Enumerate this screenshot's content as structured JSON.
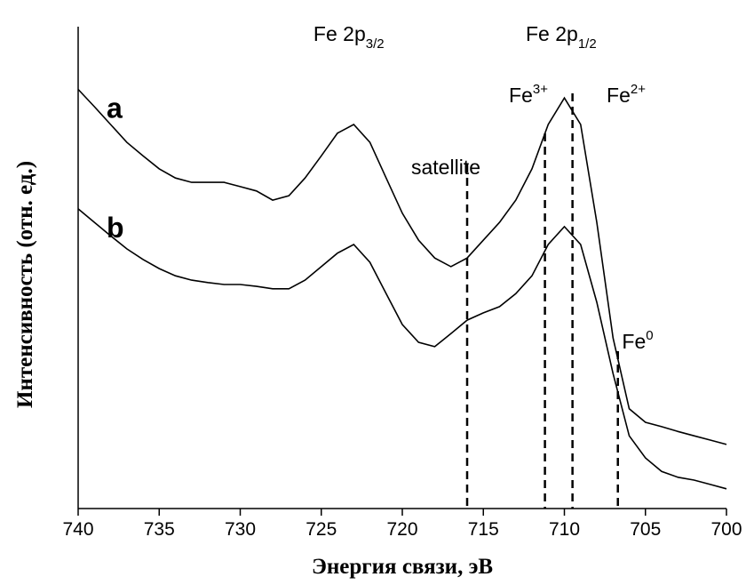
{
  "chart_data": {
    "type": "line",
    "x_label": "Энергия связи, эВ",
    "y_label": "Интенсивность (отн. ед.)",
    "x": [
      740,
      739,
      738,
      737,
      736,
      735,
      734,
      733,
      732,
      731,
      730,
      729,
      728,
      727,
      726,
      725,
      724,
      723,
      722,
      721,
      720,
      719,
      718,
      717,
      716,
      715,
      714,
      713,
      712,
      711,
      710,
      709,
      708,
      707,
      706,
      705,
      704,
      703,
      702,
      701,
      700
    ],
    "series": [
      {
        "name": "a",
        "color": "#000000",
        "values": [
          87,
          83.4,
          79.7,
          76,
          73.2,
          70.5,
          68.6,
          67.7,
          67.7,
          67.7,
          66.8,
          65.9,
          64,
          64.9,
          68.6,
          73.2,
          77.9,
          79.7,
          76,
          68.6,
          61.3,
          55.7,
          52,
          50.2,
          52,
          55.7,
          59.4,
          64,
          70.5,
          79.7,
          85.2,
          79.7,
          59.4,
          35.4,
          20.7,
          17.9,
          17,
          16,
          15.1,
          14.2,
          13.3
        ]
      },
      {
        "name": "b",
        "color": "#000000",
        "values": [
          62.2,
          59.4,
          56.6,
          53.9,
          51.7,
          49.8,
          48.3,
          47.4,
          46.9,
          46.5,
          46.5,
          46.1,
          45.6,
          45.6,
          47.4,
          50.2,
          53,
          54.8,
          51.1,
          44.6,
          38.2,
          34.5,
          33.6,
          36.3,
          39.1,
          40.6,
          41.9,
          44.6,
          48.3,
          54.8,
          58.5,
          54.8,
          42.8,
          28,
          15.1,
          10.5,
          7.7,
          6.5,
          5.9,
          5,
          4.1
        ]
      }
    ],
    "xlim": [
      740,
      700
    ],
    "xticks": [
      740,
      735,
      730,
      725,
      720,
      715,
      710,
      705,
      700
    ],
    "ylim": [
      0,
      100
    ],
    "peak_labels": [
      {
        "x": 723.3,
        "text": "Fe 2p",
        "sub": "3/2"
      },
      {
        "x": 710.2,
        "text": "Fe 2p",
        "sub": "1/2"
      }
    ],
    "markers": [
      {
        "x": 716,
        "text": "satellite"
      },
      {
        "x": 711.2,
        "text": "Fe",
        "sup": "3+"
      },
      {
        "x": 709.5,
        "text": "Fe",
        "sup": "2+"
      },
      {
        "x": 706.7,
        "text": "Fe",
        "sup": "0"
      }
    ]
  }
}
